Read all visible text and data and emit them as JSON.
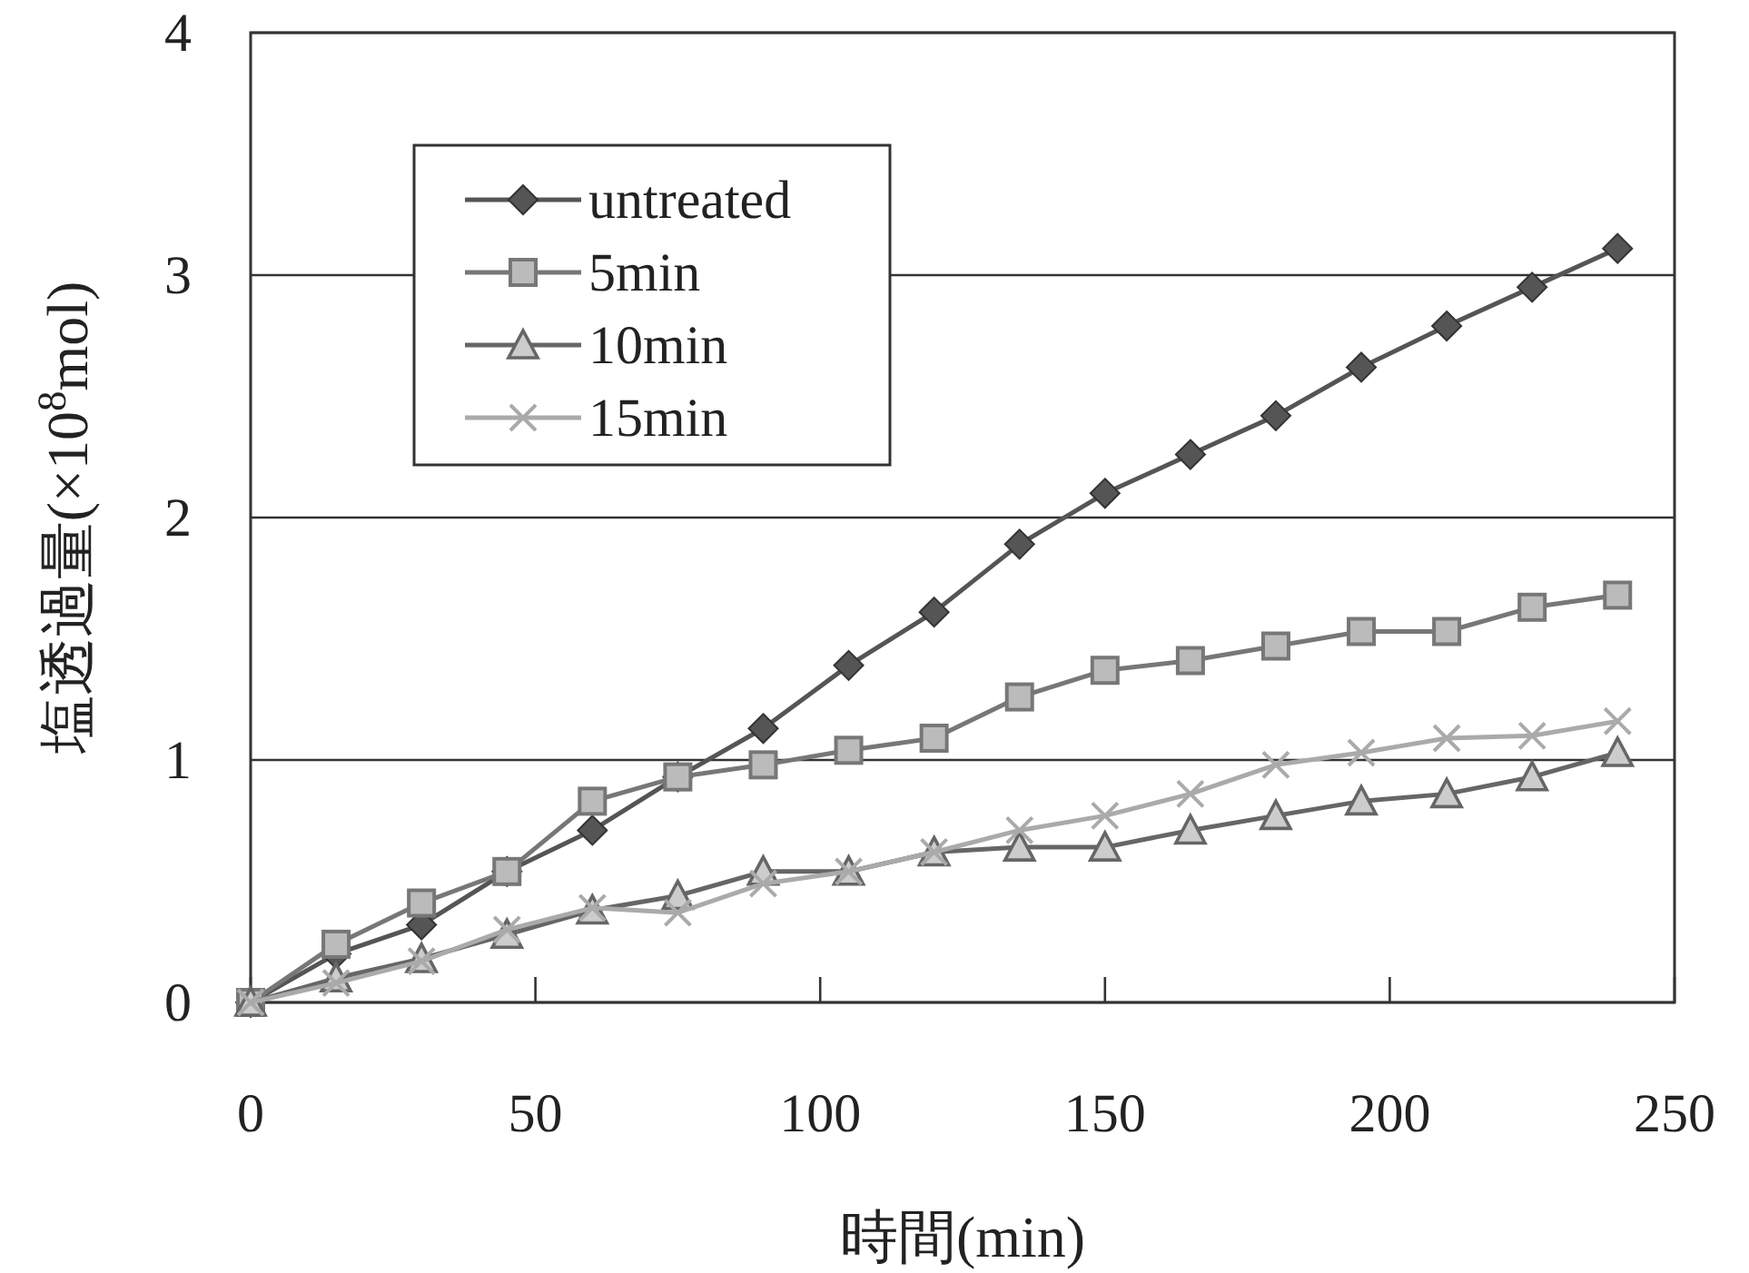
{
  "chart_data": {
    "type": "line",
    "xlabel": "時間(min)",
    "ylabel": "塩透過量(×10$^{8}$mol)",
    "x": [
      0,
      15,
      30,
      45,
      60,
      75,
      90,
      105,
      120,
      135,
      150,
      165,
      180,
      195,
      210,
      225,
      240
    ],
    "xlim": [
      0,
      250
    ],
    "xticks": [
      0,
      50,
      100,
      150,
      200,
      250
    ],
    "ylim": [
      0,
      4
    ],
    "yticks": [
      0,
      1,
      2,
      3,
      4
    ],
    "grid": "y",
    "legend": "top left",
    "series": [
      {
        "name": "untreated",
        "color": "#555555",
        "marker": "diamond",
        "values": [
          0,
          0.2,
          0.32,
          0.54,
          0.71,
          0.93,
          1.13,
          1.39,
          1.61,
          1.89,
          2.1,
          2.26,
          2.42,
          2.62,
          2.79,
          2.95,
          3.11
        ]
      },
      {
        "name": "5min",
        "color": "#777777",
        "marker": "square",
        "values": [
          0,
          0.24,
          0.41,
          0.54,
          0.83,
          0.93,
          0.98,
          1.04,
          1.09,
          1.26,
          1.37,
          1.41,
          1.47,
          1.53,
          1.53,
          1.63,
          1.68
        ]
      },
      {
        "name": "10min",
        "color": "#666666",
        "marker": "triangle",
        "values": [
          0,
          0.1,
          0.18,
          0.28,
          0.38,
          0.44,
          0.54,
          0.54,
          0.62,
          0.64,
          0.64,
          0.71,
          0.77,
          0.83,
          0.86,
          0.93,
          1.03
        ]
      },
      {
        "name": "15min",
        "color": "#aaaaaa",
        "marker": "cross",
        "values": [
          0,
          0.08,
          0.17,
          0.3,
          0.39,
          0.37,
          0.49,
          0.54,
          0.62,
          0.71,
          0.77,
          0.86,
          0.98,
          1.03,
          1.09,
          1.1,
          1.16
        ]
      }
    ]
  }
}
